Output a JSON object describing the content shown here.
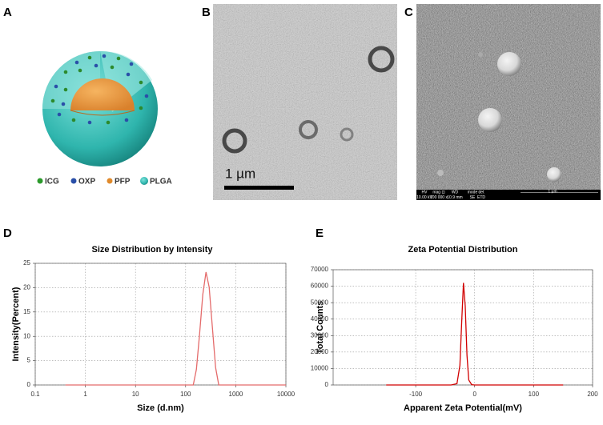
{
  "panel_labels": [
    "A",
    "B",
    "C",
    "D",
    "E"
  ],
  "panel_a": {
    "legend": [
      "ICG",
      "OXP",
      "PFP",
      "PLGA"
    ]
  },
  "panel_b": {
    "scale_bar": "1 µm"
  },
  "panel_c": {
    "info_headers": [
      "HV",
      "mag ⊡",
      "WD",
      "mode",
      "det"
    ],
    "info_values": [
      "10.00 kV",
      "100 000 x",
      "10.9 mm",
      "SE",
      "ETD"
    ],
    "scale_bar": "1 µm"
  },
  "chart_data": [
    {
      "type": "line",
      "title": "Size Distribution by Intensity",
      "x_label": "Size (d.nm)",
      "y_label": "Intensity(Percent)",
      "x_scale": "log",
      "grid": true,
      "xlim": [
        0.1,
        10000
      ],
      "xticks": [
        0.1,
        1,
        10,
        100,
        1000,
        10000
      ],
      "ylim": [
        0,
        25
      ],
      "yticks": [
        0,
        5,
        10,
        15,
        20,
        25
      ],
      "x": [
        0.4,
        100,
        142,
        164,
        190,
        220,
        255,
        295,
        342,
        396,
        458,
        1000,
        10000
      ],
      "series": [
        {
          "color": "#e46b6b",
          "values": [
            0,
            0,
            0,
            3.2,
            10.5,
            18.6,
            23.2,
            20.1,
            11.8,
            3.6,
            0,
            0,
            0
          ]
        }
      ]
    },
    {
      "type": "line",
      "title": "Zeta Potential Distribution",
      "x_label": "Apparent Zeta Potential(mV)",
      "y_label": "Total Counts",
      "x_scale": "linear",
      "grid": true,
      "xlim": [
        -240,
        200
      ],
      "xticks": [
        -100,
        0,
        100,
        200
      ],
      "ylim": [
        0,
        70000
      ],
      "yticks": [
        0,
        10000,
        20000,
        30000,
        40000,
        50000,
        60000,
        70000
      ],
      "x": [
        -150,
        -40,
        -30,
        -25,
        -22,
        -19,
        -16,
        -13,
        -10,
        -5,
        0,
        150
      ],
      "series": [
        {
          "color": "#d10000",
          "values": [
            0,
            0,
            800,
            12000,
            38000,
            62000,
            48000,
            18000,
            3000,
            200,
            0,
            0
          ]
        }
      ]
    }
  ]
}
